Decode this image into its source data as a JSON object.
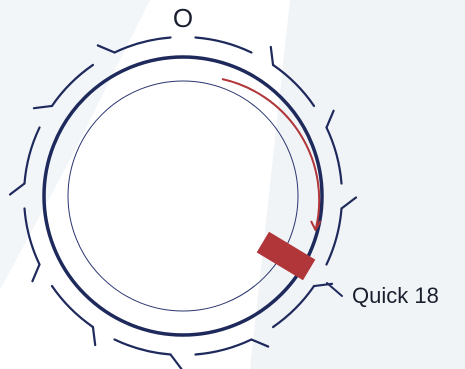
{
  "dial": {
    "top_label": "O",
    "setting_label": "Quick 18",
    "colors": {
      "ring": "#1f2a5c",
      "inner_ring": "#2b3670",
      "accent": "#b1363a",
      "background_shape": "#f2f5f8",
      "text": "#1a1f2e"
    },
    "icons": {
      "indicator": "setting-indicator-icon",
      "rotation_arrow": "clockwise-arrow-icon"
    }
  }
}
